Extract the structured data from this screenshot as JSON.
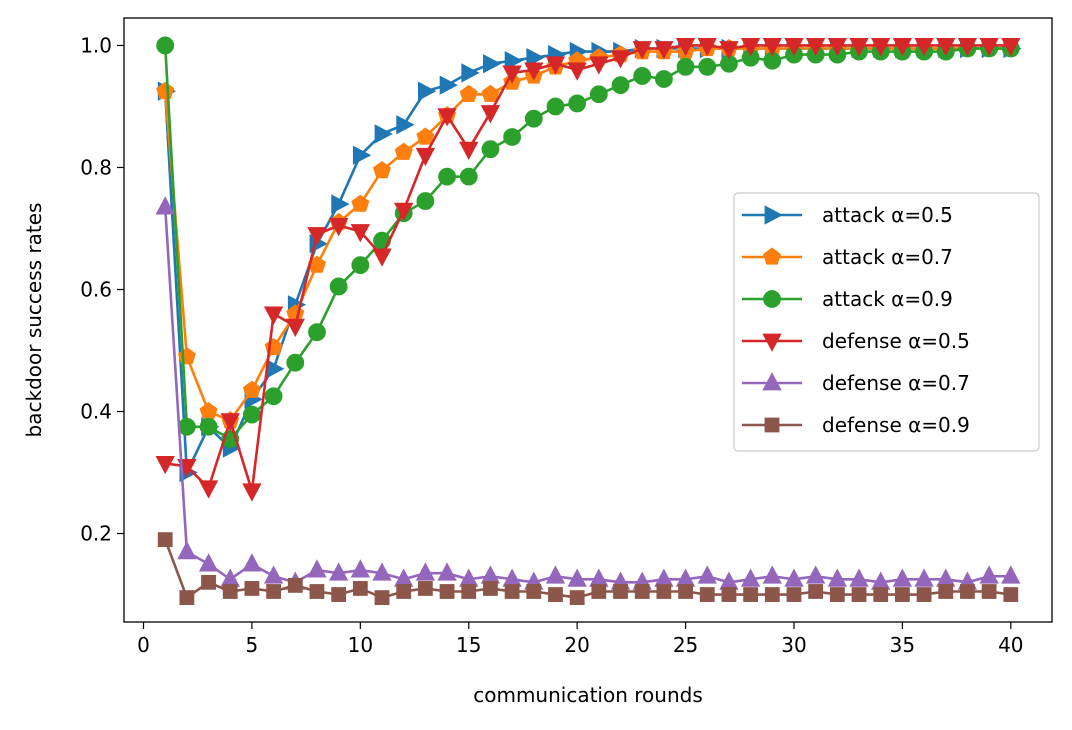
{
  "chart_data": {
    "type": "line",
    "xlabel": "communication rounds",
    "ylabel": "backdoor success rates",
    "xlim": [
      -0.9,
      41.9
    ],
    "ylim": [
      0.055,
      1.045
    ],
    "xticks": [
      0,
      5,
      10,
      15,
      20,
      25,
      30,
      35,
      40
    ],
    "yticks": [
      0.2,
      0.4,
      0.6,
      0.8,
      1.0
    ],
    "xtick_labels": [
      "0",
      "5",
      "10",
      "15",
      "20",
      "25",
      "30",
      "35",
      "40"
    ],
    "ytick_labels": [
      "0.2",
      "0.4",
      "0.6",
      "0.8",
      "1.0"
    ],
    "legend_position": "center-right",
    "x": [
      1,
      2,
      3,
      4,
      5,
      6,
      7,
      8,
      9,
      10,
      11,
      12,
      13,
      14,
      15,
      16,
      17,
      18,
      19,
      20,
      21,
      22,
      23,
      24,
      25,
      26,
      27,
      28,
      29,
      30,
      31,
      32,
      33,
      34,
      35,
      36,
      37,
      38,
      39,
      40
    ],
    "series": [
      {
        "name": "attack α=0.5",
        "color": "#1f77b4",
        "marker": "triangle-right",
        "values": [
          0.925,
          0.3,
          0.375,
          0.34,
          0.42,
          0.47,
          0.575,
          0.675,
          0.74,
          0.82,
          0.855,
          0.87,
          0.925,
          0.935,
          0.955,
          0.97,
          0.975,
          0.98,
          0.985,
          0.99,
          0.99,
          0.99,
          0.995,
          0.995,
          0.995,
          0.995,
          0.995,
          0.995,
          0.995,
          0.995,
          0.995,
          0.995,
          0.995,
          0.995,
          0.995,
          0.995,
          0.995,
          0.995,
          0.995,
          0.995
        ]
      },
      {
        "name": "attack α=0.7",
        "color": "#ff7f0e",
        "marker": "pentagon",
        "values": [
          0.925,
          0.49,
          0.4,
          0.385,
          0.435,
          0.505,
          0.56,
          0.64,
          0.71,
          0.74,
          0.795,
          0.825,
          0.85,
          0.885,
          0.92,
          0.92,
          0.94,
          0.95,
          0.965,
          0.975,
          0.98,
          0.985,
          0.99,
          0.99,
          0.99,
          0.995,
          0.995,
          0.995,
          0.995,
          0.995,
          0.995,
          0.995,
          0.995,
          0.995,
          0.995,
          0.995,
          0.995,
          0.995,
          0.995,
          0.995
        ]
      },
      {
        "name": "attack α=0.9",
        "color": "#2ca02c",
        "marker": "circle",
        "values": [
          1.0,
          0.375,
          0.375,
          0.355,
          0.395,
          0.425,
          0.48,
          0.53,
          0.605,
          0.64,
          0.68,
          0.725,
          0.745,
          0.785,
          0.785,
          0.83,
          0.85,
          0.88,
          0.9,
          0.905,
          0.92,
          0.935,
          0.95,
          0.945,
          0.965,
          0.965,
          0.97,
          0.98,
          0.975,
          0.985,
          0.985,
          0.985,
          0.99,
          0.99,
          0.99,
          0.99,
          0.99,
          0.995,
          0.995,
          0.995
        ]
      },
      {
        "name": "defense α=0.5",
        "color": "#d62728",
        "marker": "triangle-down",
        "values": [
          0.315,
          0.31,
          0.275,
          0.385,
          0.27,
          0.56,
          0.54,
          0.69,
          0.705,
          0.695,
          0.655,
          0.73,
          0.82,
          0.885,
          0.83,
          0.89,
          0.955,
          0.96,
          0.97,
          0.96,
          0.97,
          0.98,
          0.995,
          0.995,
          1.0,
          1.0,
          0.995,
          1.0,
          1.0,
          1.0,
          1.0,
          1.0,
          1.0,
          1.0,
          1.0,
          1.0,
          1.0,
          1.0,
          1.0,
          1.0
        ]
      },
      {
        "name": "defense α=0.7",
        "color": "#9467bd",
        "marker": "triangle-up",
        "values": [
          0.735,
          0.17,
          0.15,
          0.125,
          0.15,
          0.13,
          0.12,
          0.14,
          0.135,
          0.14,
          0.135,
          0.125,
          0.135,
          0.135,
          0.125,
          0.13,
          0.125,
          0.12,
          0.13,
          0.125,
          0.125,
          0.12,
          0.12,
          0.125,
          0.125,
          0.13,
          0.12,
          0.125,
          0.13,
          0.125,
          0.13,
          0.125,
          0.125,
          0.12,
          0.125,
          0.125,
          0.125,
          0.12,
          0.13,
          0.13
        ]
      },
      {
        "name": "defense α=0.9",
        "color": "#8c564b",
        "marker": "square",
        "values": [
          0.19,
          0.095,
          0.12,
          0.105,
          0.11,
          0.105,
          0.115,
          0.105,
          0.1,
          0.11,
          0.095,
          0.105,
          0.11,
          0.105,
          0.105,
          0.11,
          0.105,
          0.105,
          0.1,
          0.095,
          0.105,
          0.105,
          0.105,
          0.105,
          0.105,
          0.1,
          0.1,
          0.1,
          0.1,
          0.1,
          0.105,
          0.1,
          0.1,
          0.1,
          0.1,
          0.1,
          0.105,
          0.105,
          0.105,
          0.1
        ]
      }
    ]
  }
}
